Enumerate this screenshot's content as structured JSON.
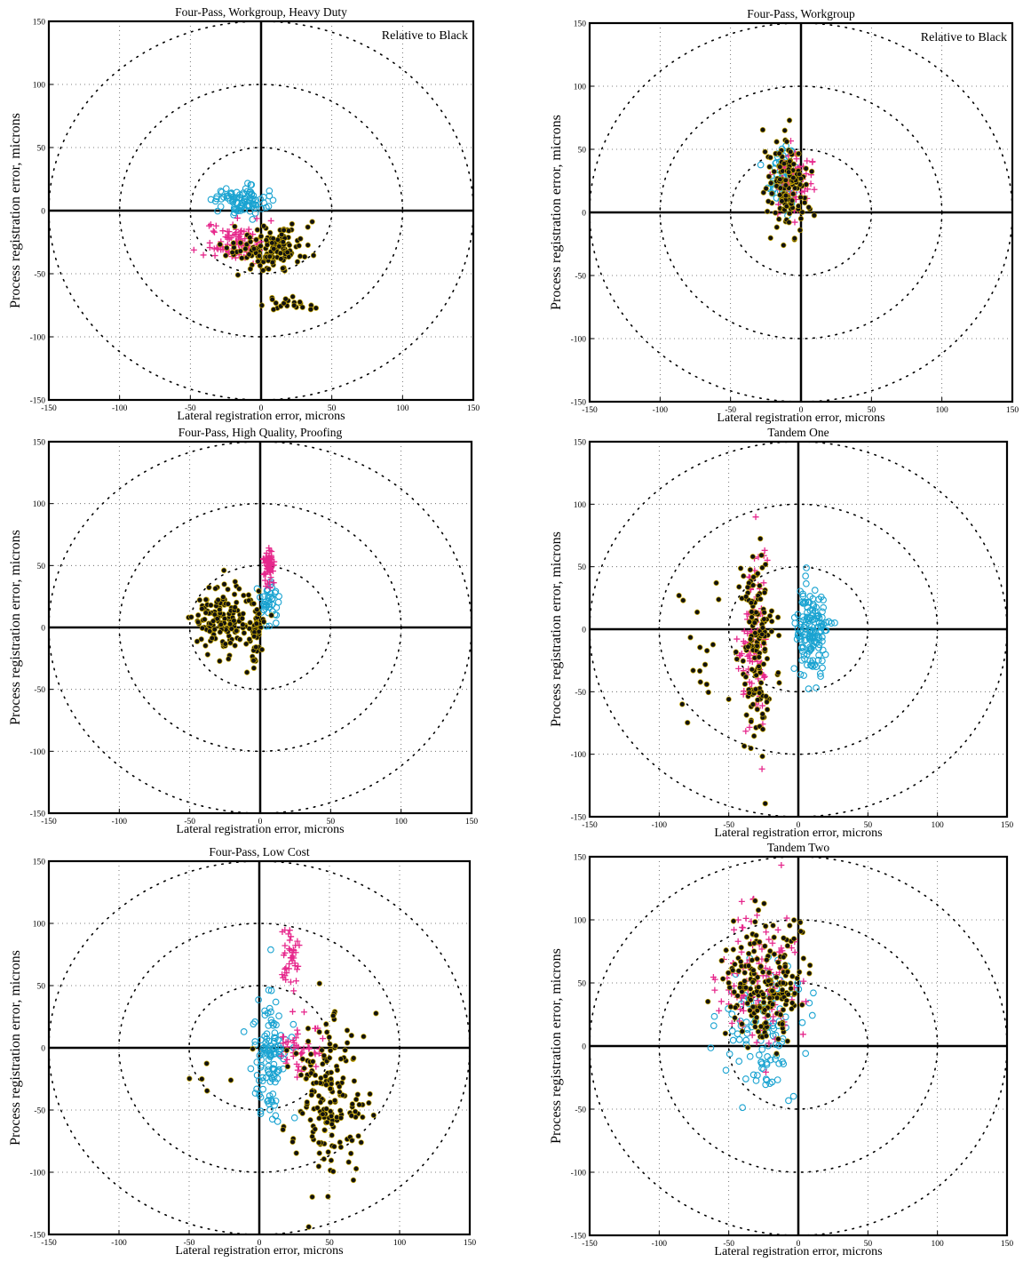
{
  "colors": {
    "cyan": "#1aa3d1",
    "magenta": "#e6288c",
    "black": "#111111",
    "black_edge": "#c9a800"
  },
  "chart_data": [
    {
      "type": "scatter",
      "title": "Four-Pass, Workgroup, Heavy Duty",
      "annotation": "Relative to Black",
      "xlabel": "Lateral registration error, microns",
      "ylabel": "Process registration error, microns",
      "xlim": [
        -150,
        150
      ],
      "ylim": [
        -150,
        150
      ],
      "xticks": [
        -150,
        -100,
        -50,
        0,
        50,
        100,
        150
      ],
      "yticks": [
        -150,
        -100,
        -50,
        0,
        50,
        100,
        150
      ],
      "circles": [
        50,
        100,
        150
      ],
      "grid": true,
      "series": [
        {
          "marker": "o",
          "color": "cyan",
          "clusters": [
            {
              "cx": -15,
              "cy": 8,
              "sx": 9,
              "sy": 6,
              "n": 90
            }
          ]
        },
        {
          "marker": "+",
          "color": "magenta",
          "clusters": [
            {
              "cx": -20,
              "cy": -25,
              "sx": 10,
              "sy": 7,
              "n": 90
            }
          ]
        },
        {
          "marker": "dot",
          "color": "black",
          "clusters": [
            {
              "cx": 8,
              "cy": -30,
              "sx": 14,
              "sy": 9,
              "n": 130
            },
            {
              "cx": 20,
              "cy": -73,
              "sx": 12,
              "sy": 4,
              "n": 22
            }
          ]
        }
      ]
    },
    {
      "type": "scatter",
      "title": "Four-Pass, Workgroup",
      "annotation": "Relative to Black",
      "xlabel": "Lateral registration error, microns",
      "ylabel": "Process registration error, microns",
      "xlim": [
        -150,
        150
      ],
      "ylim": [
        -150,
        150
      ],
      "xticks": [
        -150,
        -100,
        -50,
        0,
        50,
        100,
        150
      ],
      "yticks": [
        -150,
        -100,
        -50,
        0,
        50,
        100,
        150
      ],
      "circles": [
        50,
        100,
        150
      ],
      "grid": true,
      "series": [
        {
          "marker": "o",
          "color": "cyan",
          "clusters": [
            {
              "cx": -12,
              "cy": 28,
              "sx": 6,
              "sy": 13,
              "n": 70
            }
          ]
        },
        {
          "marker": "+",
          "color": "magenta",
          "clusters": [
            {
              "cx": -4,
              "cy": 25,
              "sx": 6,
              "sy": 12,
              "n": 70
            }
          ]
        },
        {
          "marker": "dot",
          "color": "black",
          "clusters": [
            {
              "cx": -10,
              "cy": 22,
              "sx": 7,
              "sy": 18,
              "n": 130
            }
          ]
        }
      ]
    },
    {
      "type": "scatter",
      "title": "Four-Pass, High Quality, Proofing",
      "annotation": "",
      "xlabel": "Lateral registration error, microns",
      "ylabel": "Process registration error, microns",
      "xlim": [
        -150,
        150
      ],
      "ylim": [
        -150,
        150
      ],
      "xticks": [
        -150,
        -100,
        -50,
        0,
        50,
        100,
        150
      ],
      "yticks": [
        -150,
        -100,
        -50,
        0,
        50,
        100,
        150
      ],
      "circles": [
        50,
        100,
        150
      ],
      "grid": true,
      "series": [
        {
          "marker": "o",
          "color": "cyan",
          "clusters": [
            {
              "cx": 6,
              "cy": 20,
              "sx": 3,
              "sy": 9,
              "n": 40
            }
          ]
        },
        {
          "marker": "+",
          "color": "magenta",
          "clusters": [
            {
              "cx": 6,
              "cy": 50,
              "sx": 2,
              "sy": 7,
              "n": 60
            }
          ]
        },
        {
          "marker": "dot",
          "color": "black",
          "clusters": [
            {
              "cx": -25,
              "cy": 5,
              "sx": 12,
              "sy": 15,
              "n": 150
            },
            {
              "cx": -3,
              "cy": 0,
              "sx": 3,
              "sy": 18,
              "n": 40
            }
          ]
        }
      ]
    },
    {
      "type": "scatter",
      "title": "Tandem One",
      "annotation": "",
      "xlabel": "Lateral registration error, microns",
      "ylabel": "Process registration error, microns",
      "xlim": [
        -150,
        150
      ],
      "ylim": [
        -150,
        150
      ],
      "xticks": [
        -150,
        -100,
        -50,
        0,
        50,
        100,
        150
      ],
      "yticks": [
        -150,
        -100,
        -50,
        0,
        50,
        100,
        150
      ],
      "circles": [
        50,
        100,
        150
      ],
      "grid": true,
      "series": [
        {
          "marker": "o",
          "color": "cyan",
          "clusters": [
            {
              "cx": 10,
              "cy": 0,
              "sx": 6,
              "sy": 20,
              "n": 150
            }
          ]
        },
        {
          "marker": "+",
          "color": "magenta",
          "clusters": [
            {
              "cx": -32,
              "cy": -5,
              "sx": 5,
              "sy": 35,
              "n": 110
            }
          ]
        },
        {
          "marker": "dot",
          "color": "black",
          "clusters": [
            {
              "cx": -30,
              "cy": -20,
              "sx": 6,
              "sy": 40,
              "n": 150
            },
            {
              "cx": -68,
              "cy": -15,
              "sx": 8,
              "sy": 35,
              "n": 18
            }
          ]
        }
      ]
    },
    {
      "type": "scatter",
      "title": "Four-Pass, Low Cost",
      "annotation": "",
      "xlabel": "Lateral registration error, microns",
      "ylabel": "Process registration error, microns",
      "xlim": [
        -150,
        150
      ],
      "ylim": [
        -150,
        150
      ],
      "xticks": [
        -150,
        -100,
        -50,
        0,
        50,
        100,
        150
      ],
      "yticks": [
        -150,
        -100,
        -50,
        0,
        50,
        100,
        150
      ],
      "circles": [
        50,
        100,
        150
      ],
      "grid": true,
      "series": [
        {
          "marker": "o",
          "color": "cyan",
          "clusters": [
            {
              "cx": 8,
              "cy": -10,
              "sx": 6,
              "sy": 25,
              "n": 120
            }
          ]
        },
        {
          "marker": "+",
          "color": "magenta",
          "clusters": [
            {
              "cx": 22,
              "cy": 70,
              "sx": 3,
              "sy": 12,
              "n": 40
            },
            {
              "cx": 30,
              "cy": 0,
              "sx": 8,
              "sy": 10,
              "n": 50
            }
          ]
        },
        {
          "marker": "dot",
          "color": "black",
          "clusters": [
            {
              "cx": 48,
              "cy": -35,
              "sx": 13,
              "sy": 30,
              "n": 180
            },
            {
              "cx": -30,
              "cy": -25,
              "sx": 12,
              "sy": 10,
              "n": 6
            }
          ]
        }
      ]
    },
    {
      "type": "scatter",
      "title": "Tandem Two",
      "annotation": "",
      "xlabel": "Lateral registration error, microns",
      "ylabel": "Process registration error, microns",
      "xlim": [
        -150,
        150
      ],
      "ylim": [
        -150,
        150
      ],
      "xticks": [
        -150,
        -100,
        -50,
        0,
        50,
        100,
        150
      ],
      "yticks": [
        -150,
        -100,
        -50,
        0,
        50,
        100,
        150
      ],
      "circles": [
        50,
        100,
        150
      ],
      "grid": true,
      "series": [
        {
          "marker": "o",
          "color": "cyan",
          "clusters": [
            {
              "cx": -28,
              "cy": 10,
              "sx": 14,
              "sy": 25,
              "n": 120
            }
          ]
        },
        {
          "marker": "+",
          "color": "magenta",
          "clusters": [
            {
              "cx": -30,
              "cy": 50,
              "sx": 15,
              "sy": 28,
              "n": 120
            }
          ]
        },
        {
          "marker": "dot",
          "color": "black",
          "clusters": [
            {
              "cx": -25,
              "cy": 50,
              "sx": 14,
              "sy": 22,
              "n": 200
            }
          ]
        }
      ]
    }
  ]
}
